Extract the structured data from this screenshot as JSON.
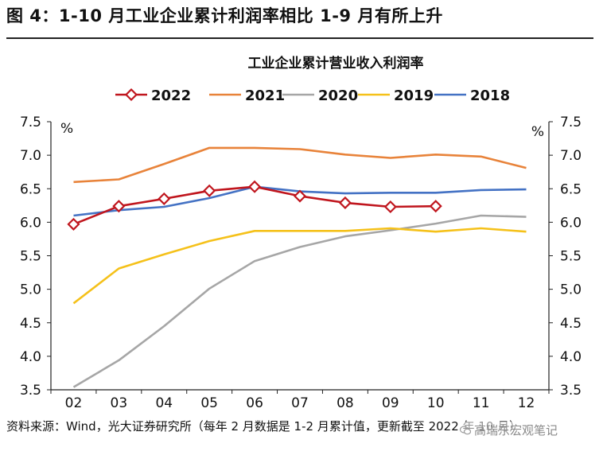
{
  "figure_title": "图 4：1-10 月工业企业累计利润率相比 1-9 月有所上升",
  "source_note": "资料来源：Wind，光大证券研究所（每年 2 月数据是 1-2 月累计值，更新截至 2022 年 10 月）",
  "watermark": "高瑞东宏观笔记",
  "colors": {
    "2022": "#c0161e",
    "2021": "#e8833a",
    "2020": "#a6a6a6",
    "2019": "#f5c11a",
    "2018": "#4472c4"
  },
  "chart_data": {
    "type": "line",
    "title": "工业企业累计营业收入利润率",
    "xlabel": "",
    "ylabel": "%",
    "ylabel_right": "%",
    "categories": [
      "02",
      "03",
      "04",
      "05",
      "06",
      "07",
      "08",
      "09",
      "10",
      "11",
      "12"
    ],
    "ylim": [
      3.5,
      7.5
    ],
    "yticks": [
      "3.5",
      "4.0",
      "4.5",
      "5.0",
      "5.5",
      "6.0",
      "6.5",
      "7.0",
      "7.5"
    ],
    "legend_position": "top",
    "series": [
      {
        "name": "2022",
        "marker": "diamond",
        "values": [
          5.97,
          6.24,
          6.35,
          6.47,
          6.53,
          6.39,
          6.29,
          6.23,
          6.24,
          null,
          null
        ]
      },
      {
        "name": "2021",
        "values": [
          6.6,
          6.64,
          6.87,
          7.11,
          7.11,
          7.09,
          7.01,
          6.96,
          7.01,
          6.98,
          6.81
        ]
      },
      {
        "name": "2020",
        "values": [
          3.54,
          3.94,
          4.45,
          5.01,
          5.42,
          5.63,
          5.79,
          5.88,
          5.98,
          6.1,
          6.08
        ]
      },
      {
        "name": "2019",
        "values": [
          4.79,
          5.31,
          5.52,
          5.72,
          5.87,
          5.87,
          5.87,
          5.91,
          5.86,
          5.91,
          5.86
        ]
      },
      {
        "name": "2018",
        "values": [
          6.1,
          6.18,
          6.23,
          6.36,
          6.53,
          6.46,
          6.43,
          6.44,
          6.44,
          6.48,
          6.49
        ]
      }
    ]
  }
}
